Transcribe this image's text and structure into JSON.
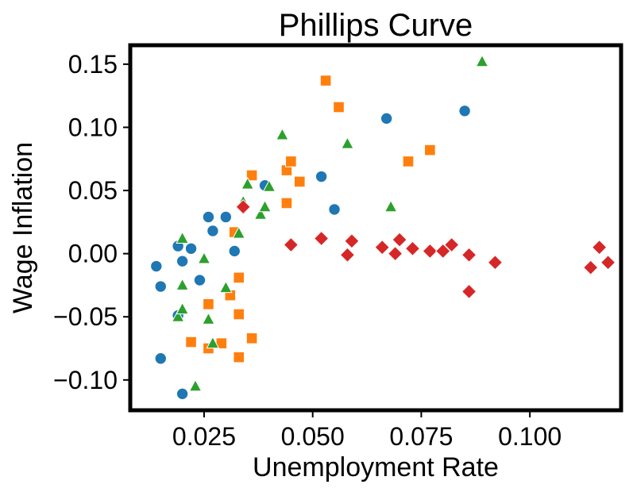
{
  "chart_data": {
    "type": "scatter",
    "title": "Phillips Curve",
    "xlabel": "Unemployment Rate",
    "ylabel": "Wage Inflation",
    "xlim": [
      0.008,
      0.121
    ],
    "ylim": [
      -0.124,
      0.165
    ],
    "xticks": [
      0.025,
      0.05,
      0.075,
      0.1
    ],
    "xtick_labels": [
      "0.025",
      "0.050",
      "0.075",
      "0.100"
    ],
    "yticks": [
      -0.1,
      -0.05,
      0.0,
      0.05,
      0.1,
      0.15
    ],
    "ytick_labels": [
      "−0.10",
      "−0.05",
      "0.00",
      "0.05",
      "0.10",
      "0.15"
    ],
    "grid": false,
    "legend": "none",
    "series": [
      {
        "marker": "circle",
        "color": "#1f77b4",
        "points": [
          [
            0.014,
            -0.01
          ],
          [
            0.015,
            -0.026
          ],
          [
            0.015,
            -0.083
          ],
          [
            0.019,
            0.006
          ],
          [
            0.02,
            -0.006
          ],
          [
            0.022,
            0.004
          ],
          [
            0.019,
            -0.049
          ],
          [
            0.02,
            -0.111
          ],
          [
            0.024,
            -0.021
          ],
          [
            0.026,
            0.029
          ],
          [
            0.027,
            0.018
          ],
          [
            0.03,
            0.029
          ],
          [
            0.032,
            0.002
          ],
          [
            0.039,
            0.054
          ],
          [
            0.052,
            0.061
          ],
          [
            0.055,
            0.035
          ],
          [
            0.067,
            0.107
          ],
          [
            0.085,
            0.113
          ]
        ]
      },
      {
        "marker": "square",
        "color": "#ff7f0e",
        "points": [
          [
            0.022,
            -0.07
          ],
          [
            0.026,
            -0.04
          ],
          [
            0.026,
            -0.075
          ],
          [
            0.029,
            -0.071
          ],
          [
            0.031,
            -0.033
          ],
          [
            0.032,
            0.017
          ],
          [
            0.033,
            -0.019
          ],
          [
            0.033,
            -0.048
          ],
          [
            0.033,
            -0.082
          ],
          [
            0.036,
            -0.067
          ],
          [
            0.036,
            0.062
          ],
          [
            0.044,
            0.04
          ],
          [
            0.044,
            0.066
          ],
          [
            0.045,
            0.073
          ],
          [
            0.047,
            0.057
          ],
          [
            0.053,
            0.137
          ],
          [
            0.056,
            0.116
          ],
          [
            0.072,
            0.073
          ],
          [
            0.077,
            0.082
          ]
        ]
      },
      {
        "marker": "triangle",
        "color": "#2ca02c",
        "points": [
          [
            0.019,
            -0.05
          ],
          [
            0.02,
            -0.044
          ],
          [
            0.02,
            -0.025
          ],
          [
            0.02,
            0.012
          ],
          [
            0.023,
            -0.105
          ],
          [
            0.025,
            -0.004
          ],
          [
            0.026,
            -0.052
          ],
          [
            0.027,
            -0.071
          ],
          [
            0.03,
            -0.027
          ],
          [
            0.033,
            0.016
          ],
          [
            0.034,
            0.041
          ],
          [
            0.035,
            0.055
          ],
          [
            0.038,
            0.031
          ],
          [
            0.039,
            0.037
          ],
          [
            0.04,
            0.053
          ],
          [
            0.043,
            0.094
          ],
          [
            0.058,
            0.087
          ],
          [
            0.068,
            0.037
          ],
          [
            0.089,
            0.152
          ]
        ]
      },
      {
        "marker": "diamond",
        "color": "#d62728",
        "points": [
          [
            0.034,
            0.037
          ],
          [
            0.045,
            0.007
          ],
          [
            0.052,
            0.012
          ],
          [
            0.058,
            -0.001
          ],
          [
            0.059,
            0.01
          ],
          [
            0.066,
            0.005
          ],
          [
            0.069,
            0.0
          ],
          [
            0.07,
            0.011
          ],
          [
            0.073,
            0.004
          ],
          [
            0.077,
            0.002
          ],
          [
            0.08,
            0.002
          ],
          [
            0.082,
            0.007
          ],
          [
            0.086,
            -0.001
          ],
          [
            0.086,
            -0.03
          ],
          [
            0.092,
            -0.007
          ],
          [
            0.114,
            -0.011
          ],
          [
            0.116,
            0.005
          ],
          [
            0.118,
            -0.007
          ]
        ]
      }
    ]
  }
}
